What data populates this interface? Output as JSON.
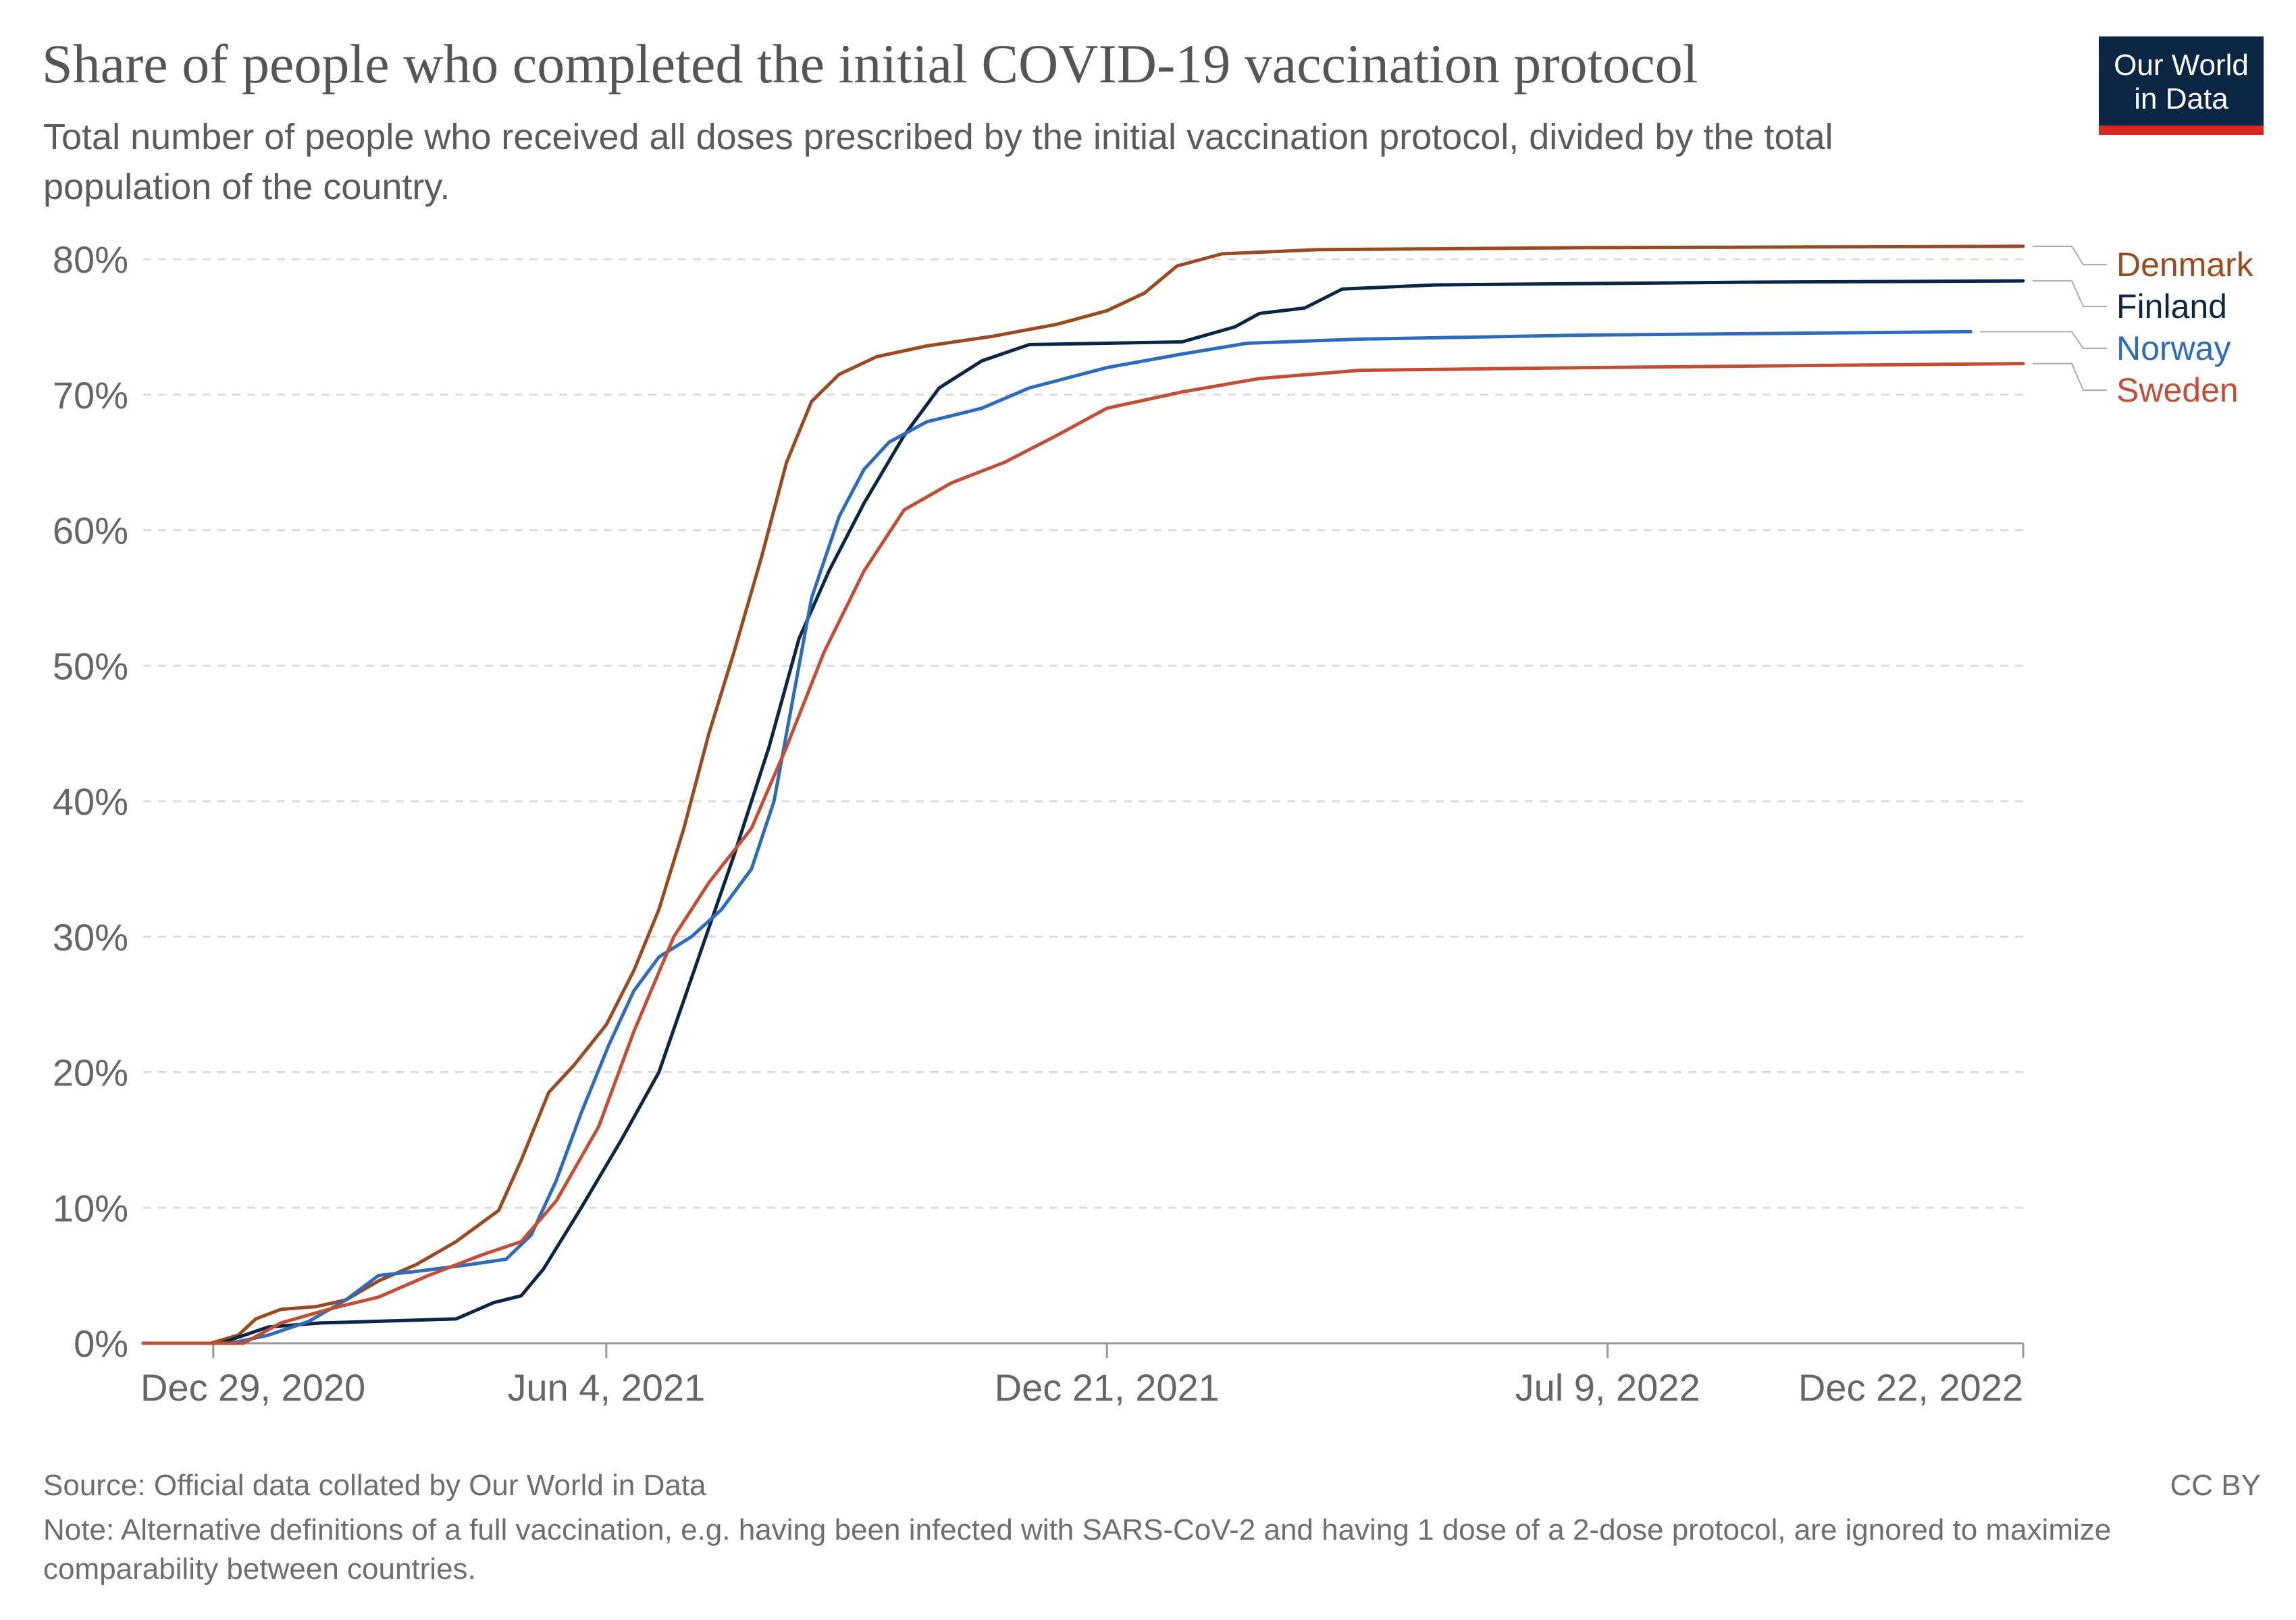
{
  "header": {
    "title": "Share of people who completed the initial COVID-19 vaccination protocol",
    "subtitle": "Total number of people who received all doses prescribed by the initial vaccination protocol, divided by the total population of the country."
  },
  "logo": {
    "line1": "Our World",
    "line2": "in Data",
    "bg_color": "#0b2545",
    "accent_color": "#d42b21"
  },
  "footer": {
    "source": "Source: Official data collated by Our World in Data",
    "license": "CC BY",
    "note": "Note: Alternative definitions of a full vaccination, e.g. having been infected with SARS-CoV-2 and having 1 dose of a 2-dose protocol, are ignored to maximize comparability between countries."
  },
  "chart_data": {
    "type": "line",
    "title": "Share of people who completed the initial COVID-19 vaccination protocol",
    "x_type": "date",
    "xlim": [
      "2020-12-01",
      "2022-12-22"
    ],
    "ylim": [
      0,
      80
    ],
    "y_unit": "%",
    "x_ticks": [
      "2020-12-29",
      "2021-06-04",
      "2021-12-21",
      "2022-07-09",
      "2022-12-22"
    ],
    "x_tick_labels": [
      "Dec 29, 2020",
      "Jun 4, 2021",
      "Dec 21, 2021",
      "Jul 9, 2022",
      "Dec 22, 2022"
    ],
    "y_ticks": [
      0,
      10,
      20,
      30,
      40,
      50,
      60,
      70,
      80
    ],
    "y_tick_labels": [
      "0%",
      "10%",
      "20%",
      "30%",
      "40%",
      "50%",
      "60%",
      "70%",
      "80%"
    ],
    "grid": "horizontal dashed",
    "legend": "right, labels at line ends",
    "series": [
      {
        "name": "Denmark",
        "color": "#9a4a1f",
        "points": [
          [
            "2020-12-01",
            0
          ],
          [
            "2020-12-28",
            0
          ],
          [
            "2021-01-08",
            0.6
          ],
          [
            "2021-01-15",
            1.8
          ],
          [
            "2021-01-25",
            2.5
          ],
          [
            "2021-02-08",
            2.7
          ],
          [
            "2021-02-20",
            3.2
          ],
          [
            "2021-03-05",
            4.6
          ],
          [
            "2021-03-20",
            5.8
          ],
          [
            "2021-04-05",
            7.5
          ],
          [
            "2021-04-22",
            9.8
          ],
          [
            "2021-05-01",
            13.5
          ],
          [
            "2021-05-12",
            18.5
          ],
          [
            "2021-05-22",
            20.5
          ],
          [
            "2021-06-04",
            23.5
          ],
          [
            "2021-06-15",
            27.5
          ],
          [
            "2021-06-25",
            32
          ],
          [
            "2021-07-05",
            38
          ],
          [
            "2021-07-15",
            45
          ],
          [
            "2021-07-25",
            51
          ],
          [
            "2021-08-05",
            58
          ],
          [
            "2021-08-15",
            65
          ],
          [
            "2021-08-25",
            69.5
          ],
          [
            "2021-09-05",
            71.5
          ],
          [
            "2021-09-20",
            72.8
          ],
          [
            "2021-10-10",
            73.6
          ],
          [
            "2021-11-05",
            74.3
          ],
          [
            "2021-12-01",
            75.2
          ],
          [
            "2021-12-21",
            76.2
          ],
          [
            "2022-01-05",
            77.5
          ],
          [
            "2022-01-18",
            79.5
          ],
          [
            "2022-02-05",
            80.4
          ],
          [
            "2022-03-15",
            80.7
          ],
          [
            "2022-07-01",
            80.85
          ],
          [
            "2022-12-22",
            80.95
          ]
        ]
      },
      {
        "name": "Finland",
        "color": "#0b2545",
        "points": [
          [
            "2020-12-01",
            0
          ],
          [
            "2021-01-01",
            0
          ],
          [
            "2021-01-20",
            1.2
          ],
          [
            "2021-02-10",
            1.5
          ],
          [
            "2021-03-01",
            1.6
          ],
          [
            "2021-04-05",
            1.8
          ],
          [
            "2021-04-20",
            3
          ],
          [
            "2021-05-01",
            3.5
          ],
          [
            "2021-05-10",
            5.5
          ],
          [
            "2021-05-25",
            10
          ],
          [
            "2021-06-10",
            15
          ],
          [
            "2021-06-25",
            20
          ],
          [
            "2021-07-10",
            28
          ],
          [
            "2021-07-25",
            36
          ],
          [
            "2021-08-08",
            44
          ],
          [
            "2021-08-20",
            52
          ],
          [
            "2021-09-01",
            57
          ],
          [
            "2021-09-15",
            62
          ],
          [
            "2021-10-01",
            67
          ],
          [
            "2021-10-15",
            70.5
          ],
          [
            "2021-11-01",
            72.5
          ],
          [
            "2021-11-20",
            73.7
          ],
          [
            "2021-12-21",
            73.8
          ],
          [
            "2022-01-20",
            73.9
          ],
          [
            "2022-02-10",
            75
          ],
          [
            "2022-02-20",
            76
          ],
          [
            "2022-03-10",
            76.4
          ],
          [
            "2022-03-25",
            77.8
          ],
          [
            "2022-05-01",
            78.1
          ],
          [
            "2022-09-01",
            78.3
          ],
          [
            "2022-12-22",
            78.4
          ]
        ]
      },
      {
        "name": "Norway",
        "color": "#2d6bbd",
        "points": [
          [
            "2020-12-01",
            0
          ],
          [
            "2021-01-05",
            0
          ],
          [
            "2021-01-20",
            0.6
          ],
          [
            "2021-02-05",
            1.6
          ],
          [
            "2021-02-20",
            3.2
          ],
          [
            "2021-03-05",
            5
          ],
          [
            "2021-03-20",
            5.3
          ],
          [
            "2021-04-10",
            5.8
          ],
          [
            "2021-04-25",
            6.2
          ],
          [
            "2021-05-05",
            8
          ],
          [
            "2021-05-15",
            12
          ],
          [
            "2021-05-25",
            17
          ],
          [
            "2021-06-05",
            22
          ],
          [
            "2021-06-15",
            26
          ],
          [
            "2021-06-25",
            28.5
          ],
          [
            "2021-07-08",
            30
          ],
          [
            "2021-07-20",
            32
          ],
          [
            "2021-08-01",
            35
          ],
          [
            "2021-08-10",
            40
          ],
          [
            "2021-08-18",
            48
          ],
          [
            "2021-08-25",
            55
          ],
          [
            "2021-09-05",
            61
          ],
          [
            "2021-09-15",
            64.5
          ],
          [
            "2021-09-25",
            66.5
          ],
          [
            "2021-10-10",
            68
          ],
          [
            "2021-11-01",
            69
          ],
          [
            "2021-11-20",
            70.5
          ],
          [
            "2021-12-21",
            72
          ],
          [
            "2022-01-20",
            73
          ],
          [
            "2022-02-15",
            73.8
          ],
          [
            "2022-04-01",
            74.1
          ],
          [
            "2022-07-01",
            74.4
          ],
          [
            "2022-12-01",
            74.65
          ]
        ]
      },
      {
        "name": "Sweden",
        "color": "#c34e36",
        "points": [
          [
            "2020-12-01",
            0
          ],
          [
            "2021-01-10",
            0
          ],
          [
            "2021-01-25",
            1.5
          ],
          [
            "2021-02-15",
            2.6
          ],
          [
            "2021-03-05",
            3.4
          ],
          [
            "2021-03-25",
            5
          ],
          [
            "2021-04-15",
            6.5
          ],
          [
            "2021-05-01",
            7.5
          ],
          [
            "2021-05-15",
            10.5
          ],
          [
            "2021-06-01",
            16
          ],
          [
            "2021-06-15",
            23
          ],
          [
            "2021-07-01",
            30
          ],
          [
            "2021-07-15",
            34
          ],
          [
            "2021-08-01",
            38
          ],
          [
            "2021-08-15",
            44
          ],
          [
            "2021-08-30",
            51
          ],
          [
            "2021-09-15",
            57
          ],
          [
            "2021-10-01",
            61.5
          ],
          [
            "2021-10-20",
            63.5
          ],
          [
            "2021-11-10",
            65
          ],
          [
            "2021-12-01",
            67
          ],
          [
            "2021-12-21",
            69
          ],
          [
            "2022-01-20",
            70.2
          ],
          [
            "2022-02-20",
            71.2
          ],
          [
            "2022-04-01",
            71.8
          ],
          [
            "2022-07-01",
            72
          ],
          [
            "2022-12-22",
            72.3
          ]
        ]
      }
    ]
  }
}
